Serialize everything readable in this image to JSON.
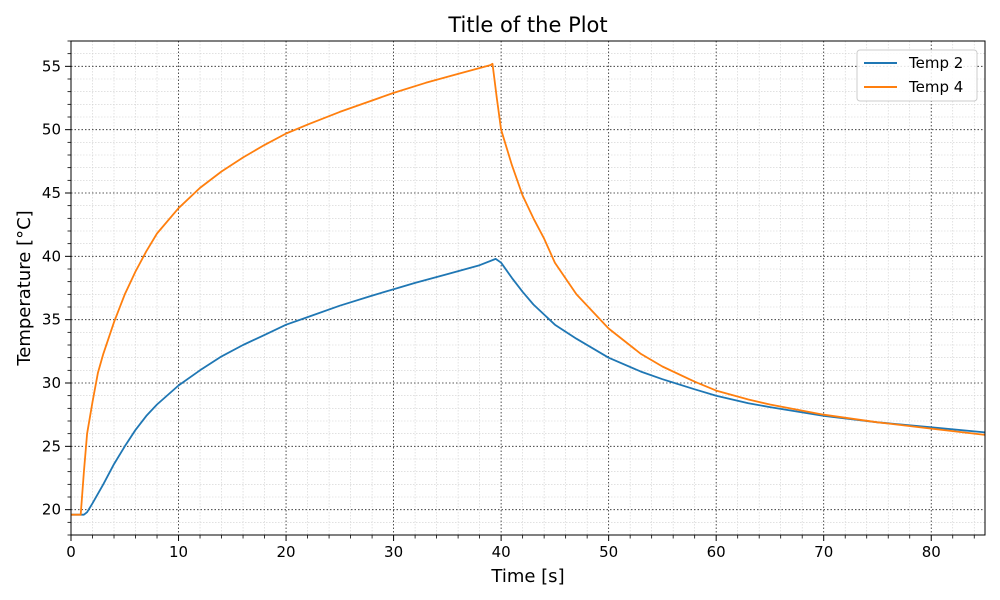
{
  "chart_data": {
    "type": "line",
    "title": "Title of the Plot",
    "xlabel": "Time [s]",
    "ylabel": "Temperature [°C]",
    "xlim": [
      0,
      85
    ],
    "ylim": [
      18,
      57
    ],
    "xticks": [
      0,
      10,
      20,
      30,
      40,
      50,
      60,
      70,
      80
    ],
    "yticks": [
      20,
      25,
      30,
      35,
      40,
      45,
      50,
      55
    ],
    "grid": true,
    "minor_grid": true,
    "legend_position": "top-right",
    "series": [
      {
        "name": "Temp 2",
        "color": "#1f77b4",
        "points": [
          [
            0,
            19.6
          ],
          [
            1.2,
            19.6
          ],
          [
            1.5,
            19.8
          ],
          [
            2,
            20.5
          ],
          [
            3,
            22.0
          ],
          [
            4,
            23.6
          ],
          [
            5,
            25.0
          ],
          [
            6,
            26.3
          ],
          [
            7,
            27.4
          ],
          [
            8,
            28.3
          ],
          [
            10,
            29.8
          ],
          [
            12,
            31.0
          ],
          [
            14,
            32.1
          ],
          [
            16,
            33.0
          ],
          [
            18,
            33.8
          ],
          [
            20,
            34.6
          ],
          [
            22,
            35.2
          ],
          [
            25,
            36.1
          ],
          [
            28,
            36.9
          ],
          [
            30,
            37.4
          ],
          [
            32,
            37.9
          ],
          [
            35,
            38.6
          ],
          [
            38,
            39.3
          ],
          [
            39.5,
            39.8
          ],
          [
            40,
            39.5
          ],
          [
            41,
            38.3
          ],
          [
            42,
            37.2
          ],
          [
            43,
            36.2
          ],
          [
            45,
            34.6
          ],
          [
            47,
            33.5
          ],
          [
            50,
            32.0
          ],
          [
            53,
            30.9
          ],
          [
            55,
            30.3
          ],
          [
            58,
            29.5
          ],
          [
            60,
            29.0
          ],
          [
            63,
            28.4
          ],
          [
            65,
            28.1
          ],
          [
            70,
            27.4
          ],
          [
            75,
            26.9
          ],
          [
            80,
            26.5
          ],
          [
            85,
            26.1
          ]
        ]
      },
      {
        "name": "Temp 4",
        "color": "#ff7f0e",
        "points": [
          [
            0,
            19.6
          ],
          [
            0.9,
            19.6
          ],
          [
            1.2,
            23.0
          ],
          [
            1.5,
            26.0
          ],
          [
            2,
            28.5
          ],
          [
            2.5,
            30.8
          ],
          [
            3,
            32.3
          ],
          [
            4,
            34.8
          ],
          [
            5,
            37.0
          ],
          [
            6,
            38.8
          ],
          [
            7,
            40.4
          ],
          [
            8,
            41.8
          ],
          [
            10,
            43.8
          ],
          [
            12,
            45.4
          ],
          [
            14,
            46.7
          ],
          [
            16,
            47.8
          ],
          [
            18,
            48.8
          ],
          [
            20,
            49.7
          ],
          [
            22,
            50.4
          ],
          [
            25,
            51.4
          ],
          [
            28,
            52.3
          ],
          [
            30,
            52.9
          ],
          [
            33,
            53.7
          ],
          [
            36,
            54.4
          ],
          [
            39,
            55.1
          ],
          [
            39.2,
            55.2
          ],
          [
            39.6,
            52.5
          ],
          [
            40,
            50.0
          ],
          [
            41,
            47.2
          ],
          [
            42,
            44.8
          ],
          [
            43,
            43.0
          ],
          [
            44,
            41.4
          ],
          [
            45,
            39.5
          ],
          [
            47,
            37.0
          ],
          [
            50,
            34.3
          ],
          [
            53,
            32.3
          ],
          [
            55,
            31.3
          ],
          [
            58,
            30.1
          ],
          [
            60,
            29.4
          ],
          [
            63,
            28.7
          ],
          [
            65,
            28.3
          ],
          [
            70,
            27.5
          ],
          [
            75,
            26.9
          ],
          [
            80,
            26.4
          ],
          [
            85,
            25.9
          ]
        ]
      }
    ]
  }
}
